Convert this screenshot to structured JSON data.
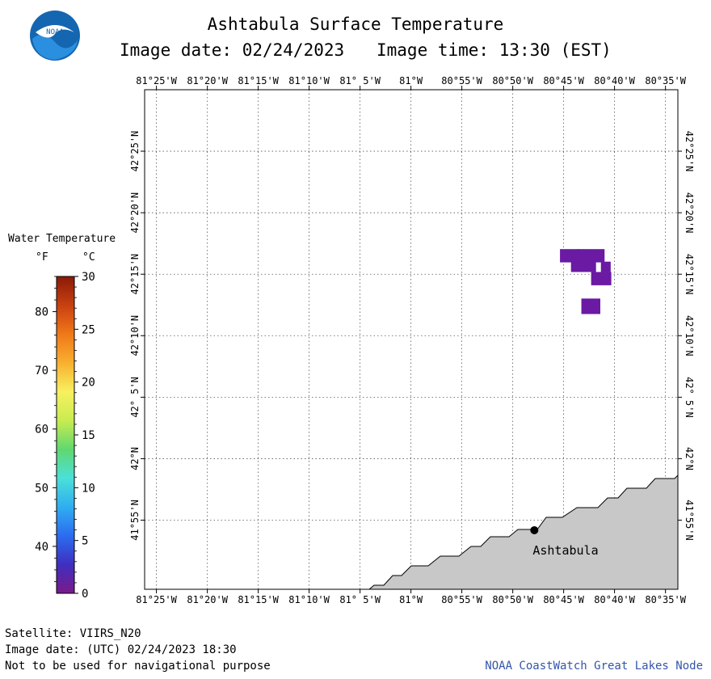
{
  "header": {
    "logo_text": "NOAA",
    "title": "Ashtabula Surface Temperature",
    "image_date_label": "Image date: 02/24/2023",
    "image_time_label": "Image time: 13:30 (EST)"
  },
  "map": {
    "lon_labels": [
      "81°25'W",
      "81°20'W",
      "81°15'W",
      "81°10'W",
      "81° 5'W",
      "81°W",
      "80°55'W",
      "80°50'W",
      "80°45'W",
      "80°40'W",
      "80°35'W"
    ],
    "lon_values": [
      -81.4167,
      -81.3333,
      -81.25,
      -81.1667,
      -81.0833,
      -81.0,
      -80.9167,
      -80.8333,
      -80.75,
      -80.6667,
      -80.5833
    ],
    "lat_labels": [
      "42°25'N",
      "42°20'N",
      "42°15'N",
      "42°10'N",
      "42° 5'N",
      "42°N",
      "41°55'N"
    ],
    "lat_values": [
      42.4167,
      42.3333,
      42.25,
      42.1667,
      42.0833,
      42.0,
      41.9167
    ],
    "lon_range": [
      -81.436,
      -80.563
    ],
    "lat_range": [
      41.823,
      42.5
    ],
    "land_color": "#c8c8c8",
    "water_temp_cells": [
      {
        "lon": -80.756,
        "lat": 42.284,
        "w": 0.031,
        "h": 0.018,
        "color": "#6a1aa3"
      },
      {
        "lon": -80.727,
        "lat": 42.284,
        "w": 0.044,
        "h": 0.018,
        "color": "#6a1aa3"
      },
      {
        "lon": -80.738,
        "lat": 42.267,
        "w": 0.041,
        "h": 0.014,
        "color": "#6a1aa3"
      },
      {
        "lon": -80.689,
        "lat": 42.267,
        "w": 0.016,
        "h": 0.014,
        "color": "#6a1aa3"
      },
      {
        "lon": -80.705,
        "lat": 42.253,
        "w": 0.033,
        "h": 0.018,
        "color": "#6a1aa3"
      },
      {
        "lon": -80.721,
        "lat": 42.217,
        "w": 0.031,
        "h": 0.021,
        "color": "#6a1aa3"
      }
    ],
    "city": {
      "name": "Ashtabula",
      "lon": -80.798,
      "lat": 41.903
    }
  },
  "colorbar": {
    "title": "Water Temperature",
    "unit_f": "°F",
    "unit_c": "°C",
    "range_c": [
      0,
      30
    ],
    "c_ticks": [
      "0",
      "5",
      "10",
      "15",
      "20",
      "25",
      "30"
    ],
    "f_ticks": [
      "40",
      "50",
      "60",
      "70",
      "80"
    ],
    "gradient": [
      "#7a1a8a",
      "#3f2fbf",
      "#2b6cf0",
      "#30aef0",
      "#4be0d8",
      "#60d870",
      "#c8ec50",
      "#f8f060",
      "#f8b030",
      "#f07818",
      "#c84010",
      "#8a1a08"
    ]
  },
  "footer": {
    "satellite": "Satellite: VIIRS_N20",
    "utc_date": "Image date: (UTC) 02/24/2023  18:30",
    "disclaimer": "Not to be used for navigational purpose",
    "credit": "NOAA CoastWatch Great Lakes Node",
    "credit_color": "#3355aa"
  }
}
